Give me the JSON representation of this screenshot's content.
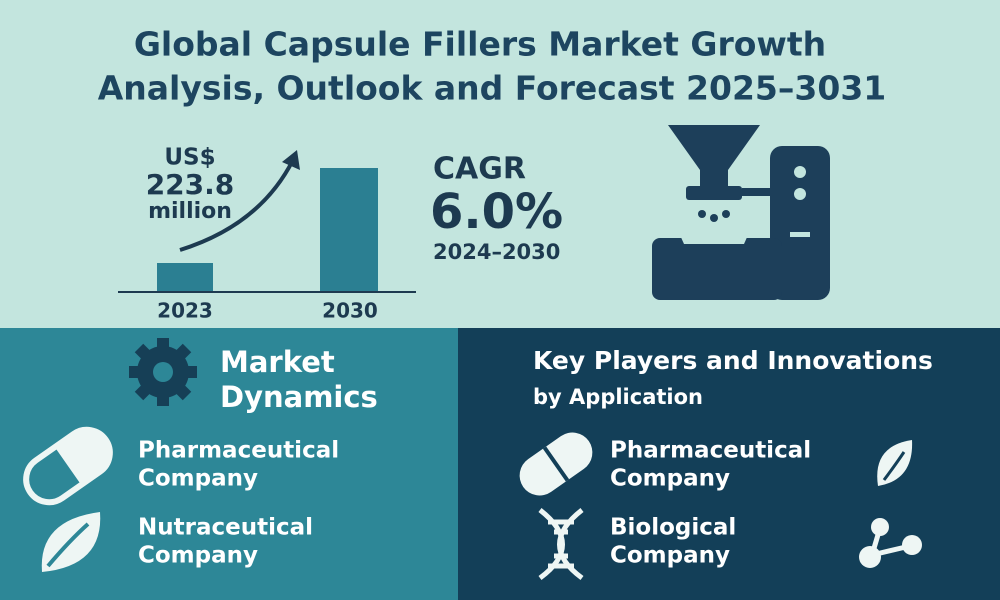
{
  "header": {
    "title_lines": [
      "Global Capsule Fillers Market Growth",
      "Analysis, Outlook and Forecast 2025–3031"
    ]
  },
  "growth": {
    "currency": "US$",
    "amount": "223.8",
    "unit": "million",
    "years": [
      "2023",
      "2030"
    ]
  },
  "cagr": {
    "label": "CAGR",
    "value": "6.0%",
    "period": "2024–2030"
  },
  "market_dynamics": {
    "title_lines": [
      "Market",
      "Dynamics"
    ],
    "items": [
      [
        "Pharmaceutical",
        "Company"
      ],
      [
        "Nutraceutical",
        "Company"
      ]
    ]
  },
  "key_players": {
    "title": "Key Players and Innovations",
    "subtitle": "by Application",
    "items": [
      [
        "Pharmaceutical",
        "Company"
      ],
      [
        "Biological",
        "Company"
      ]
    ]
  }
}
